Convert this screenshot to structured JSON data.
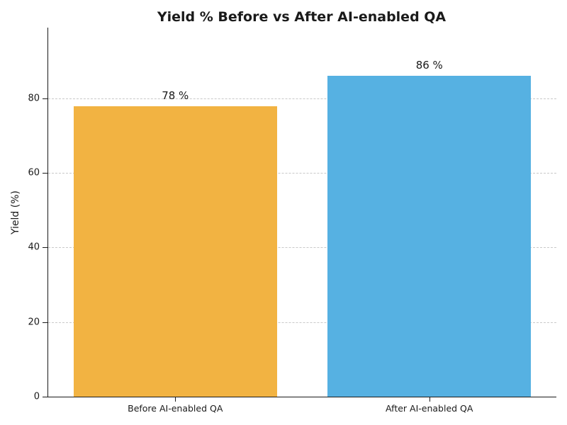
{
  "chart_data": {
    "type": "bar",
    "title": "Yield % Before vs After AI-enabled QA",
    "xlabel": "",
    "ylabel": "Yield (%)",
    "categories": [
      "Before AI-enabled QA",
      "After AI-enabled QA"
    ],
    "values": [
      78,
      86
    ],
    "bar_value_labels": [
      "78 %",
      "86 %"
    ],
    "bar_colors": [
      "#F2B342",
      "#56B1E2"
    ],
    "ylim": [
      0,
      99
    ],
    "yticks": [
      0,
      20,
      40,
      60,
      80
    ],
    "grid": "horizontal dashed gridlines at y ticks, behind bars",
    "grid_color": "#c9c9c9",
    "axis_color": "#1a1a1a",
    "text_color": "#1a1a1a",
    "background_color": "#ffffff",
    "legend": "none",
    "bar_width_fraction": 0.8
  }
}
